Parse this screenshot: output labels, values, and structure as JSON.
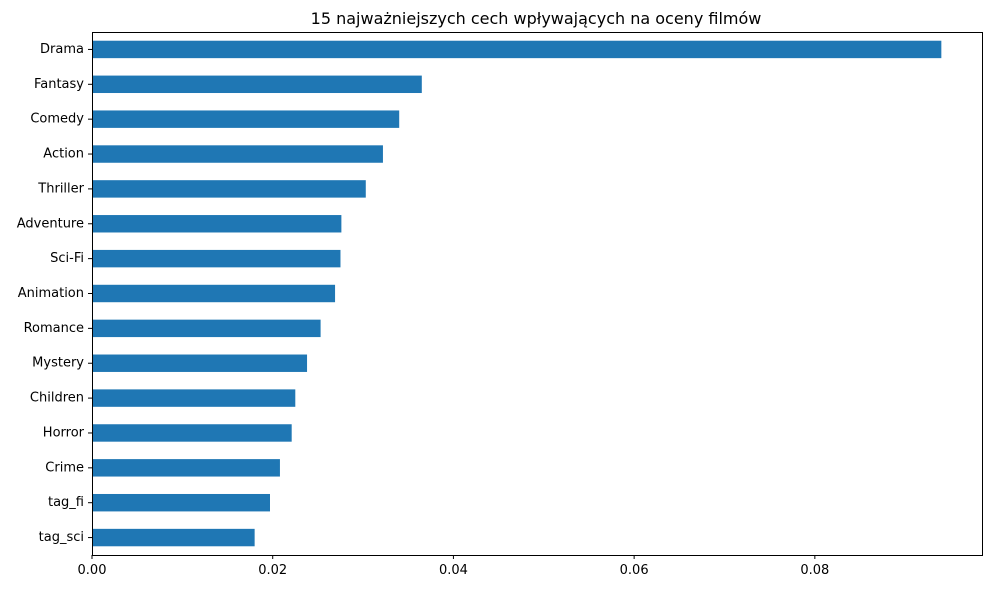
{
  "chart_data": {
    "type": "bar",
    "orientation": "horizontal",
    "title": "15 najważniejszych cech wpływających na oceny filmów",
    "xlabel": "",
    "ylabel": "",
    "categories": [
      "Drama",
      "Fantasy",
      "Comedy",
      "Action",
      "Thriller",
      "Adventure",
      "Sci-Fi",
      "Animation",
      "Romance",
      "Mystery",
      "Children",
      "Horror",
      "Crime",
      "tag_fi",
      "tag_sci"
    ],
    "values": [
      0.094,
      0.0365,
      0.034,
      0.0322,
      0.0303,
      0.0276,
      0.0275,
      0.0269,
      0.0253,
      0.0238,
      0.0225,
      0.0221,
      0.0208,
      0.0197,
      0.018
    ],
    "xlim": [
      0,
      0.0985
    ],
    "xticks": [
      0.0,
      0.02,
      0.04,
      0.06,
      0.08
    ],
    "xtick_labels": [
      "0.00",
      "0.02",
      "0.04",
      "0.06",
      "0.08"
    ],
    "grid": false,
    "legend": "none",
    "bar_color": "#1f77b4"
  }
}
